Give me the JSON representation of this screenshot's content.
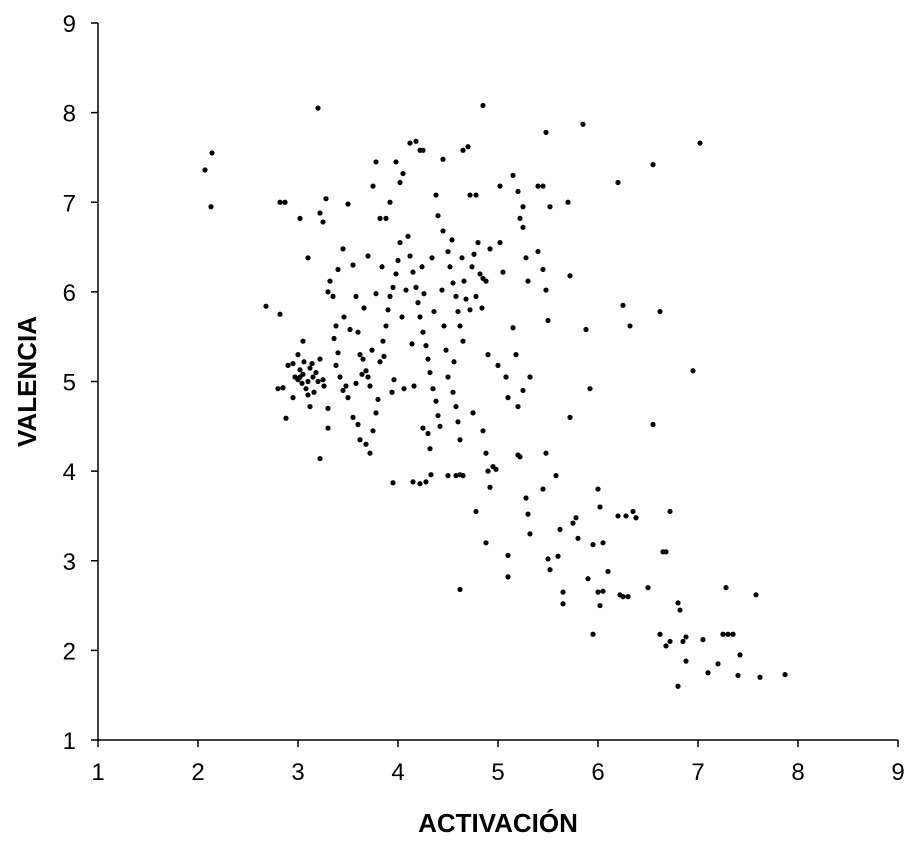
{
  "chart_data": {
    "type": "scatter",
    "title": "",
    "xlabel": "ACTIVACIÓN",
    "ylabel": "VALENCIA",
    "xlim": [
      1,
      9
    ],
    "ylim": [
      1,
      9
    ],
    "x_ticks": [
      1,
      2,
      3,
      4,
      5,
      6,
      7,
      8,
      9
    ],
    "y_ticks": [
      1,
      2,
      3,
      4,
      5,
      6,
      7,
      8,
      9
    ],
    "grid": false,
    "legend": "none",
    "marker_color": "#000000",
    "series": [
      {
        "points": [
          [
            2.07,
            7.36
          ],
          [
            2.14,
            7.55
          ],
          [
            2.13,
            6.95
          ],
          [
            2.68,
            5.84
          ],
          [
            2.82,
            7.0
          ],
          [
            2.87,
            7.0
          ],
          [
            2.82,
            5.75
          ],
          [
            2.8,
            4.92
          ],
          [
            2.85,
            4.93
          ],
          [
            2.88,
            4.59
          ],
          [
            2.9,
            5.18
          ],
          [
            2.95,
            5.2
          ],
          [
            2.95,
            4.82
          ],
          [
            2.97,
            5.05
          ],
          [
            3.0,
            5.02
          ],
          [
            3.02,
            5.05
          ],
          [
            3.04,
            4.98
          ],
          [
            3.02,
            5.13
          ],
          [
            3.05,
            5.08
          ],
          [
            3.08,
            4.92
          ],
          [
            3.1,
            5.0
          ],
          [
            3.12,
            5.15
          ],
          [
            3.14,
            5.2
          ],
          [
            3.1,
            4.85
          ],
          [
            3.12,
            4.72
          ],
          [
            3.15,
            5.05
          ],
          [
            3.18,
            5.1
          ],
          [
            3.2,
            5.0
          ],
          [
            3.22,
            5.25
          ],
          [
            3.25,
            5.02
          ],
          [
            3.05,
            5.45
          ],
          [
            3.02,
            6.82
          ],
          [
            3.1,
            6.38
          ],
          [
            3.2,
            8.05
          ],
          [
            3.22,
            6.88
          ],
          [
            3.28,
            7.04
          ],
          [
            3.25,
            6.78
          ],
          [
            3.3,
            6.0
          ],
          [
            3.32,
            6.12
          ],
          [
            3.35,
            5.95
          ],
          [
            3.38,
            5.62
          ],
          [
            3.38,
            5.18
          ],
          [
            3.4,
            5.32
          ],
          [
            3.42,
            5.05
          ],
          [
            3.45,
            4.9
          ],
          [
            3.5,
            4.82
          ],
          [
            3.48,
            4.95
          ],
          [
            3.3,
            4.48
          ],
          [
            3.22,
            4.14
          ],
          [
            3.3,
            4.7
          ],
          [
            3.4,
            6.25
          ],
          [
            3.45,
            6.48
          ],
          [
            3.5,
            6.98
          ],
          [
            3.55,
            6.3
          ],
          [
            3.58,
            5.95
          ],
          [
            3.6,
            5.55
          ],
          [
            3.62,
            5.3
          ],
          [
            3.65,
            5.25
          ],
          [
            3.68,
            5.12
          ],
          [
            3.7,
            5.05
          ],
          [
            3.72,
            4.95
          ],
          [
            3.55,
            4.6
          ],
          [
            3.6,
            4.52
          ],
          [
            3.62,
            4.35
          ],
          [
            3.68,
            4.3
          ],
          [
            3.72,
            4.2
          ],
          [
            3.75,
            4.45
          ],
          [
            3.78,
            4.65
          ],
          [
            3.8,
            4.8
          ],
          [
            3.82,
            5.22
          ],
          [
            3.85,
            5.45
          ],
          [
            3.88,
            5.62
          ],
          [
            3.9,
            5.8
          ],
          [
            3.92,
            5.95
          ],
          [
            3.95,
            6.05
          ],
          [
            3.98,
            6.2
          ],
          [
            4.0,
            6.35
          ],
          [
            4.02,
            6.55
          ],
          [
            3.7,
            6.4
          ],
          [
            3.75,
            7.18
          ],
          [
            3.78,
            7.45
          ],
          [
            3.82,
            6.82
          ],
          [
            3.88,
            6.82
          ],
          [
            3.92,
            7.0
          ],
          [
            3.98,
            7.45
          ],
          [
            4.02,
            7.22
          ],
          [
            4.05,
            7.32
          ],
          [
            4.1,
            6.62
          ],
          [
            4.12,
            6.4
          ],
          [
            4.15,
            6.22
          ],
          [
            4.18,
            6.05
          ],
          [
            4.2,
            5.88
          ],
          [
            4.22,
            5.72
          ],
          [
            4.25,
            5.55
          ],
          [
            4.28,
            5.4
          ],
          [
            4.3,
            5.25
          ],
          [
            4.32,
            5.1
          ],
          [
            4.35,
            4.92
          ],
          [
            4.38,
            4.78
          ],
          [
            4.4,
            4.62
          ],
          [
            4.42,
            4.5
          ],
          [
            4.25,
            4.48
          ],
          [
            4.3,
            4.42
          ],
          [
            4.32,
            4.25
          ],
          [
            4.15,
            3.88
          ],
          [
            4.22,
            3.86
          ],
          [
            4.28,
            3.88
          ],
          [
            4.33,
            3.96
          ],
          [
            3.95,
            3.87
          ],
          [
            4.12,
            7.66
          ],
          [
            4.18,
            7.68
          ],
          [
            4.22,
            7.58
          ],
          [
            4.25,
            7.58
          ],
          [
            4.45,
            7.48
          ],
          [
            4.38,
            7.08
          ],
          [
            4.4,
            6.85
          ],
          [
            4.45,
            6.68
          ],
          [
            4.5,
            6.45
          ],
          [
            4.52,
            6.28
          ],
          [
            4.55,
            6.1
          ],
          [
            4.58,
            5.95
          ],
          [
            4.6,
            5.78
          ],
          [
            4.62,
            5.62
          ],
          [
            4.65,
            5.45
          ],
          [
            4.48,
            5.35
          ],
          [
            4.5,
            5.05
          ],
          [
            4.55,
            4.88
          ],
          [
            4.58,
            4.72
          ],
          [
            4.6,
            4.55
          ],
          [
            4.62,
            4.35
          ],
          [
            4.5,
            3.95
          ],
          [
            4.58,
            3.95
          ],
          [
            4.62,
            3.96
          ],
          [
            4.65,
            3.95
          ],
          [
            4.62,
            2.68
          ],
          [
            4.65,
            7.58
          ],
          [
            4.7,
            7.62
          ],
          [
            4.72,
            7.08
          ],
          [
            4.78,
            7.08
          ],
          [
            4.85,
            8.08
          ],
          [
            4.8,
            6.55
          ],
          [
            4.82,
            6.2
          ],
          [
            4.85,
            6.15
          ],
          [
            4.88,
            6.12
          ],
          [
            4.9,
            5.3
          ],
          [
            4.78,
            5.95
          ],
          [
            4.72,
            5.8
          ],
          [
            4.75,
            4.65
          ],
          [
            4.85,
            4.45
          ],
          [
            4.88,
            4.2
          ],
          [
            4.9,
            4.0
          ],
          [
            4.92,
            3.82
          ],
          [
            4.95,
            4.05
          ],
          [
            4.98,
            4.02
          ],
          [
            4.78,
            3.55
          ],
          [
            4.88,
            3.2
          ],
          [
            5.0,
            5.18
          ],
          [
            5.02,
            7.18
          ],
          [
            5.02,
            6.55
          ],
          [
            5.05,
            6.22
          ],
          [
            5.08,
            5.05
          ],
          [
            5.1,
            4.82
          ],
          [
            5.1,
            3.06
          ],
          [
            5.1,
            2.82
          ],
          [
            5.15,
            5.6
          ],
          [
            5.18,
            5.3
          ],
          [
            5.2,
            4.72
          ],
          [
            5.2,
            4.18
          ],
          [
            5.22,
            4.16
          ],
          [
            5.15,
            7.3
          ],
          [
            5.2,
            7.12
          ],
          [
            5.25,
            6.95
          ],
          [
            5.22,
            6.82
          ],
          [
            5.25,
            6.72
          ],
          [
            5.28,
            6.38
          ],
          [
            5.3,
            6.12
          ],
          [
            5.32,
            5.05
          ],
          [
            5.25,
            4.9
          ],
          [
            5.28,
            3.7
          ],
          [
            5.3,
            3.52
          ],
          [
            5.32,
            3.3
          ],
          [
            5.4,
            7.18
          ],
          [
            5.45,
            7.18
          ],
          [
            5.4,
            6.45
          ],
          [
            5.45,
            6.25
          ],
          [
            5.48,
            6.02
          ],
          [
            5.5,
            5.68
          ],
          [
            5.45,
            3.8
          ],
          [
            5.48,
            4.2
          ],
          [
            5.5,
            3.02
          ],
          [
            5.52,
            2.9
          ],
          [
            5.48,
            7.78
          ],
          [
            5.52,
            6.95
          ],
          [
            5.58,
            3.95
          ],
          [
            5.6,
            3.05
          ],
          [
            5.62,
            3.35
          ],
          [
            5.65,
            2.65
          ],
          [
            5.65,
            2.52
          ],
          [
            5.7,
            7.0
          ],
          [
            5.72,
            6.18
          ],
          [
            5.72,
            4.6
          ],
          [
            5.75,
            3.42
          ],
          [
            5.78,
            3.48
          ],
          [
            5.8,
            3.25
          ],
          [
            5.85,
            7.87
          ],
          [
            5.88,
            5.58
          ],
          [
            5.92,
            4.92
          ],
          [
            5.95,
            2.18
          ],
          [
            5.9,
            2.8
          ],
          [
            5.95,
            3.18
          ],
          [
            6.0,
            3.8
          ],
          [
            6.02,
            3.6
          ],
          [
            6.05,
            3.2
          ],
          [
            6.0,
            2.65
          ],
          [
            6.02,
            2.5
          ],
          [
            6.05,
            2.66
          ],
          [
            6.1,
            2.88
          ],
          [
            6.2,
            7.22
          ],
          [
            6.25,
            5.85
          ],
          [
            6.32,
            5.62
          ],
          [
            6.2,
            3.5
          ],
          [
            6.28,
            3.5
          ],
          [
            6.35,
            3.55
          ],
          [
            6.38,
            3.48
          ],
          [
            6.22,
            2.62
          ],
          [
            6.25,
            2.6
          ],
          [
            6.3,
            2.6
          ],
          [
            6.5,
            2.7
          ],
          [
            6.55,
            7.42
          ],
          [
            6.55,
            4.52
          ],
          [
            6.62,
            5.78
          ],
          [
            6.65,
            3.1
          ],
          [
            6.68,
            3.1
          ],
          [
            6.62,
            2.18
          ],
          [
            6.68,
            2.05
          ],
          [
            6.72,
            2.1
          ],
          [
            6.72,
            3.55
          ],
          [
            6.8,
            2.53
          ],
          [
            6.82,
            2.45
          ],
          [
            6.85,
            2.1
          ],
          [
            6.88,
            2.15
          ],
          [
            6.8,
            1.6
          ],
          [
            6.88,
            1.88
          ],
          [
            6.95,
            5.12
          ],
          [
            7.02,
            7.66
          ],
          [
            7.05,
            2.12
          ],
          [
            7.1,
            1.75
          ],
          [
            7.2,
            1.85
          ],
          [
            7.25,
            2.18
          ],
          [
            7.28,
            2.7
          ],
          [
            7.3,
            2.18
          ],
          [
            7.35,
            2.18
          ],
          [
            7.4,
            1.72
          ],
          [
            7.42,
            1.95
          ],
          [
            7.58,
            2.62
          ],
          [
            7.62,
            1.7
          ],
          [
            7.87,
            1.73
          ],
          [
            3.0,
            5.3
          ],
          [
            3.06,
            5.22
          ],
          [
            3.16,
            4.88
          ],
          [
            3.26,
            4.95
          ],
          [
            3.36,
            5.48
          ],
          [
            3.46,
            5.72
          ],
          [
            3.52,
            5.58
          ],
          [
            3.58,
            4.98
          ],
          [
            3.64,
            5.08
          ],
          [
            3.66,
            5.82
          ],
          [
            3.74,
            5.35
          ],
          [
            3.78,
            5.98
          ],
          [
            3.84,
            6.28
          ],
          [
            3.86,
            5.28
          ],
          [
            3.94,
            4.88
          ],
          [
            3.96,
            5.02
          ],
          [
            4.04,
            5.72
          ],
          [
            4.06,
            4.92
          ],
          [
            4.08,
            6.02
          ],
          [
            4.14,
            5.42
          ],
          [
            4.16,
            4.95
          ],
          [
            4.24,
            6.28
          ],
          [
            4.26,
            5.98
          ],
          [
            4.34,
            6.38
          ],
          [
            4.36,
            5.78
          ],
          [
            4.44,
            6.02
          ],
          [
            4.46,
            5.62
          ],
          [
            4.54,
            6.58
          ],
          [
            4.56,
            5.22
          ],
          [
            4.64,
            6.38
          ],
          [
            4.66,
            6.12
          ],
          [
            4.68,
            5.92
          ],
          [
            4.74,
            6.28
          ],
          [
            4.76,
            6.42
          ],
          [
            4.84,
            5.82
          ],
          [
            4.92,
            6.48
          ]
        ]
      }
    ]
  }
}
